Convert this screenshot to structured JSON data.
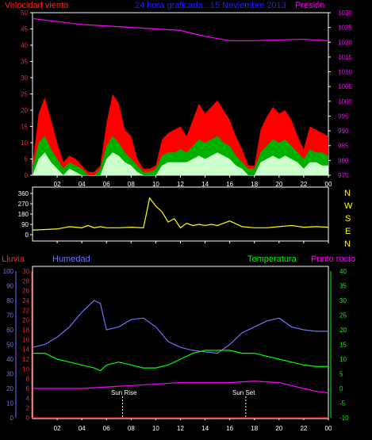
{
  "colors": {
    "bg": "#000000",
    "frame": "#ffffff",
    "wind_axis": "#ff2020",
    "pressure": "#ff00ff",
    "title": "#2020ff",
    "gust": "#ff0000",
    "avg_wind": "#00b000",
    "wind_min": "#ccffcc",
    "direction": "#ffff00",
    "rain": "#ff0000",
    "humidity": "#7070ff",
    "temperature": "#00ff00",
    "dewpoint": "#ff00ff",
    "sun_label": "#ffffff",
    "hour": "#ffffff"
  },
  "header": {
    "wind_label": "Velocidad viento",
    "title": "24 hora graficada : 15 Noviembre 2013",
    "pressure_label": "Presión"
  },
  "lower_labels": {
    "rain": "Lluvia",
    "humidity": "Humedad",
    "temperature": "Temperatura",
    "dewpoint": "Punto rocío",
    "sunrise": "Sun Rise",
    "sunset": "Sun Set"
  },
  "compass": [
    "N",
    "W",
    "S",
    "E",
    "N"
  ],
  "chart_data": [
    {
      "type": "area",
      "title": "24 hora graficada : 15 Noviembre 2013",
      "x_ticks": [
        "02",
        "04",
        "06",
        "08",
        "10",
        "12",
        "14",
        "16",
        "18",
        "20",
        "22",
        "00"
      ],
      "xlim": [
        0,
        24
      ],
      "y_left_label": "Velocidad viento",
      "y_left_ticks": [
        0,
        5,
        10,
        15,
        20,
        25,
        30,
        35,
        40,
        45,
        50
      ],
      "ylim_left": [
        0,
        50
      ],
      "y_right_label": "Presión",
      "y_right_ticks": [
        975,
        980,
        985,
        990,
        995,
        1000,
        1005,
        1010,
        1015,
        1020,
        1025,
        1030
      ],
      "ylim_right": [
        975,
        1030
      ],
      "series": [
        {
          "name": "gust",
          "color": "#ff0000",
          "x": [
            0,
            0.5,
            1,
            1.5,
            2,
            2.5,
            3,
            3.5,
            4,
            4.5,
            5,
            5.5,
            6,
            6.5,
            7,
            7.5,
            8,
            8.5,
            9,
            9.5,
            10,
            10.5,
            11,
            11.5,
            12,
            12.5,
            13,
            13.5,
            14,
            14.5,
            15,
            15.5,
            16,
            16.5,
            17,
            17.5,
            18,
            18.5,
            19,
            19.5,
            20,
            20.5,
            21,
            21.5,
            22,
            22.5,
            23,
            23.5,
            24
          ],
          "y": [
            3,
            19,
            24,
            17,
            10,
            4,
            6,
            5,
            3,
            1,
            1,
            3,
            16,
            25,
            22,
            14,
            12,
            5,
            2,
            2,
            3,
            11,
            13,
            14,
            15,
            12,
            17,
            22,
            19,
            21,
            23,
            20,
            17,
            12,
            8,
            3,
            3,
            14,
            18,
            21,
            19,
            20,
            17,
            12,
            8,
            15,
            14,
            13,
            12
          ]
        },
        {
          "name": "avg",
          "color": "#00b000",
          "x": [
            0,
            0.5,
            1,
            1.5,
            2,
            2.5,
            3,
            3.5,
            4,
            4.5,
            5,
            5.5,
            6,
            6.5,
            7,
            7.5,
            8,
            8.5,
            9,
            9.5,
            10,
            10.5,
            11,
            11.5,
            12,
            12.5,
            13,
            13.5,
            14,
            14.5,
            15,
            15.5,
            16,
            16.5,
            17,
            17.5,
            18,
            18.5,
            19,
            19.5,
            20,
            20.5,
            21,
            21.5,
            22,
            22.5,
            23,
            23.5,
            24
          ],
          "y": [
            2,
            10,
            12,
            8,
            5,
            2,
            4,
            3,
            2,
            0,
            0,
            2,
            9,
            12,
            10,
            7,
            5,
            3,
            1,
            1,
            2,
            6,
            7,
            7,
            8,
            7,
            9,
            11,
            10,
            11,
            12,
            10,
            9,
            6,
            4,
            2,
            2,
            7,
            9,
            11,
            10,
            11,
            9,
            7,
            5,
            8,
            7,
            7,
            6
          ]
        },
        {
          "name": "min",
          "color": "#ccffcc",
          "x": [
            0,
            0.5,
            1,
            1.5,
            2,
            2.5,
            3,
            3.5,
            4,
            4.5,
            5,
            5.5,
            6,
            6.5,
            7,
            7.5,
            8,
            8.5,
            9,
            9.5,
            10,
            10.5,
            11,
            11.5,
            12,
            12.5,
            13,
            13.5,
            14,
            14.5,
            15,
            15.5,
            16,
            16.5,
            17,
            17.5,
            18,
            18.5,
            19,
            19.5,
            20,
            20.5,
            21,
            21.5,
            22,
            22.5,
            23,
            23.5,
            24
          ],
          "y": [
            0,
            5,
            7,
            4,
            2,
            0,
            2,
            1,
            0,
            0,
            0,
            0,
            5,
            7,
            6,
            4,
            3,
            1,
            0,
            0,
            0,
            3,
            4,
            4,
            4,
            4,
            5,
            6,
            5,
            6,
            7,
            6,
            5,
            3,
            2,
            0,
            0,
            4,
            5,
            6,
            5,
            6,
            5,
            4,
            2,
            4,
            4,
            3,
            3
          ]
        },
        {
          "name": "pressure",
          "color": "#ff00ff",
          "axis": "right",
          "x": [
            0,
            2,
            4,
            6,
            8,
            10,
            12,
            14,
            16,
            18,
            20,
            22,
            24
          ],
          "y": [
            1028,
            1027,
            1026,
            1025.5,
            1025,
            1024.5,
            1024,
            1022,
            1020.5,
            1020.5,
            1020.8,
            1021,
            1020.5
          ]
        }
      ]
    },
    {
      "type": "line",
      "x_ticks": [
        "02",
        "04",
        "06",
        "08",
        "10",
        "12",
        "14",
        "16",
        "18",
        "20",
        "22",
        "00"
      ],
      "xlim": [
        0,
        24
      ],
      "y_ticks": [
        0,
        90,
        180,
        270,
        360
      ],
      "ylim": [
        0,
        360
      ],
      "series": [
        {
          "name": "direction",
          "color": "#ffff00",
          "x": [
            0,
            1,
            2,
            3,
            4,
            4.5,
            5,
            5.5,
            6,
            7,
            8,
            9,
            9.5,
            10,
            10.5,
            11,
            11.5,
            12,
            12.5,
            13,
            13.5,
            14,
            14.5,
            15,
            15.5,
            16,
            17,
            18,
            19,
            20,
            21,
            22,
            23,
            24
          ],
          "y": [
            40,
            45,
            50,
            70,
            60,
            80,
            60,
            70,
            60,
            60,
            65,
            60,
            320,
            250,
            200,
            110,
            140,
            60,
            100,
            80,
            90,
            80,
            90,
            80,
            100,
            120,
            70,
            60,
            60,
            70,
            80,
            65,
            70,
            65
          ]
        }
      ]
    },
    {
      "type": "line",
      "x_ticks": [
        "02",
        "04",
        "06",
        "08",
        "10",
        "12",
        "14",
        "16",
        "18",
        "20",
        "22",
        "00"
      ],
      "xlim": [
        0,
        24
      ],
      "y_humidity_ticks": [
        0,
        10,
        20,
        30,
        40,
        50,
        60,
        70,
        80,
        90,
        100
      ],
      "ylim_humidity": [
        0,
        100
      ],
      "y_rain_ticks": [
        0,
        2,
        4,
        6,
        8,
        10,
        12,
        14,
        16,
        18,
        20,
        22,
        24,
        26,
        28,
        30
      ],
      "ylim_rain": [
        0,
        30
      ],
      "y_temp_ticks": [
        -10,
        -5,
        0,
        5,
        10,
        15,
        20,
        25,
        30,
        35,
        40
      ],
      "ylim_temp": [
        -10,
        40
      ],
      "series": [
        {
          "name": "humidity",
          "color": "#7070ff",
          "axis": "humidity",
          "x": [
            0,
            1,
            2,
            3,
            4,
            5,
            5.5,
            6,
            7,
            8,
            9,
            10,
            11,
            12,
            13,
            14,
            15,
            16,
            17,
            18,
            19,
            20,
            21,
            22,
            23,
            24
          ],
          "y": [
            48,
            50,
            55,
            62,
            72,
            80,
            78,
            60,
            62,
            67,
            68,
            62,
            52,
            48,
            46,
            45,
            44,
            50,
            58,
            62,
            66,
            68,
            62,
            60,
            59,
            59
          ]
        },
        {
          "name": "temperature",
          "color": "#00ff00",
          "axis": "temp",
          "x": [
            0,
            1,
            2,
            3,
            4,
            5,
            5.5,
            6,
            7,
            8,
            9,
            10,
            11,
            12,
            13,
            14,
            15,
            16,
            17,
            18,
            19,
            20,
            21,
            22,
            23,
            24
          ],
          "y": [
            12,
            12,
            10,
            9,
            8,
            7,
            6,
            8,
            9,
            8,
            7,
            7,
            8,
            10,
            12,
            13,
            13,
            13,
            12,
            12,
            11,
            10,
            9,
            8,
            7.5,
            7.5
          ]
        },
        {
          "name": "dewpoint",
          "color": "#ff00ff",
          "axis": "temp",
          "x": [
            0,
            2,
            4,
            6,
            8,
            10,
            12,
            14,
            16,
            18,
            20,
            22,
            23,
            24
          ],
          "y": [
            0,
            0,
            0,
            0.5,
            1,
            1.5,
            2,
            2,
            2,
            2.5,
            2,
            0,
            -1,
            -1.5
          ]
        },
        {
          "name": "rain",
          "color": "#ff0000",
          "axis": "rain",
          "x": [
            0,
            24
          ],
          "y": [
            0,
            0
          ]
        }
      ],
      "sunrise_hour": 7.3,
      "sunset_hour": 17.3
    }
  ]
}
